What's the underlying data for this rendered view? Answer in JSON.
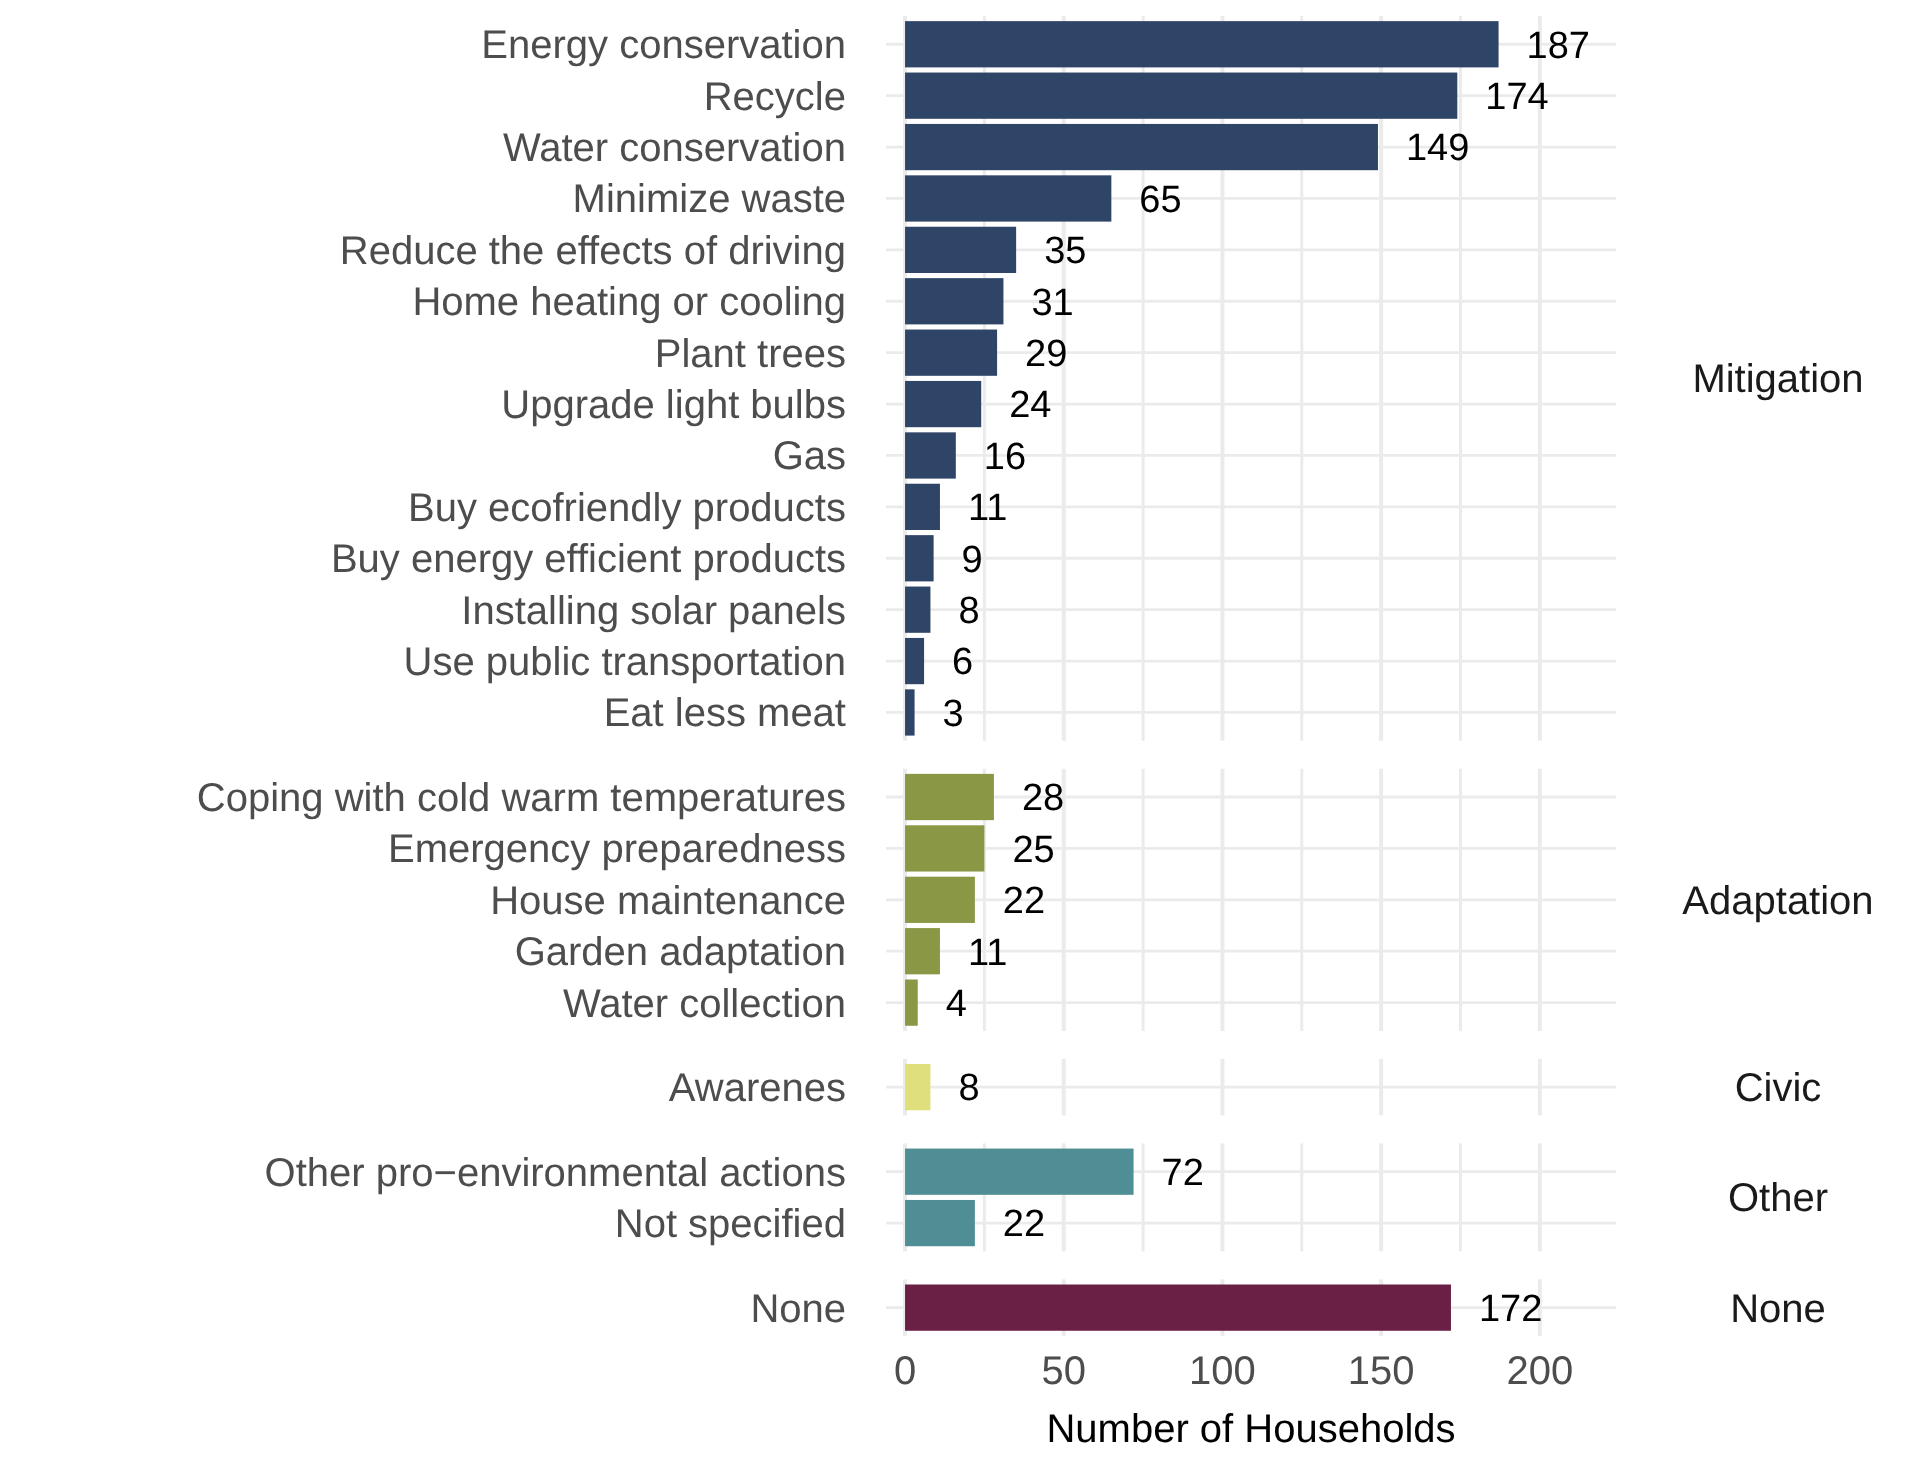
{
  "chart_data": [
    {
      "type": "bar",
      "orientation": "horizontal",
      "annotations": [
        "Mitigation"
      ],
      "categories": [
        "Energy conservation",
        "Recycle",
        "Water conservation",
        "Minimize waste",
        "Reduce the effects of driving",
        "Home heating or cooling",
        "Plant trees",
        "Upgrade light bulbs",
        "Gas",
        "Buy ecofriendly products",
        "Buy energy efficient products",
        "Installing solar panels",
        "Use public transportation",
        "Eat less meat"
      ],
      "values": [
        187,
        174,
        149,
        65,
        35,
        31,
        29,
        24,
        16,
        11,
        9,
        8,
        6,
        3
      ],
      "color": "#2f4567",
      "data_labels": true,
      "grid": true,
      "xlim": [
        -6,
        224
      ],
      "xticks": [
        0,
        {
          "value": 25,
          "label": null
        },
        50,
        {
          "value": 75,
          "label": null
        },
        100,
        {
          "value": 125,
          "label": null
        },
        150,
        {
          "value": 175,
          "label": null
        },
        200
      ],
      "tick_labels": "y"
    },
    {
      "type": "bar",
      "orientation": "horizontal",
      "annotations": [
        "Adaptation"
      ],
      "categories": [
        "Coping with cold warm temperatures",
        "Emergency preparedness",
        "House maintenance",
        "Garden adaptation",
        "Water collection"
      ],
      "values": [
        28,
        25,
        22,
        11,
        4
      ],
      "color": "#8a9846",
      "data_labels": true,
      "grid": true,
      "xlim": [
        -6,
        224
      ],
      "xticks": [
        0,
        {
          "value": 25,
          "label": null
        },
        50,
        {
          "value": 75,
          "label": null
        },
        100,
        {
          "value": 125,
          "label": null
        },
        150,
        {
          "value": 175,
          "label": null
        },
        200
      ],
      "tick_labels": "y"
    },
    {
      "type": "bar",
      "orientation": "horizontal",
      "annotations": [
        "Civic"
      ],
      "categories": [
        "Awarenes"
      ],
      "values": [
        8
      ],
      "color": "#dfe07c",
      "data_labels": true,
      "grid": true,
      "xlim": [
        -6,
        224
      ],
      "xticks": [
        0,
        50,
        100,
        150,
        200
      ],
      "tick_labels": "y"
    },
    {
      "type": "bar",
      "orientation": "horizontal",
      "annotations": [
        "Other"
      ],
      "categories": [
        "Other pro−environmental actions",
        "Not specified"
      ],
      "values": [
        72,
        22
      ],
      "color": "#4f8e95",
      "data_labels": true,
      "grid": true,
      "xlim": [
        -6,
        224
      ],
      "xticks": [
        0,
        {
          "value": 25,
          "label": null
        },
        50,
        {
          "value": 75,
          "label": null
        },
        100,
        {
          "value": 125,
          "label": null
        },
        150,
        {
          "value": 175,
          "label": null
        },
        200
      ],
      "tick_labels": "y"
    },
    {
      "type": "bar",
      "orientation": "horizontal",
      "annotations": [
        "None"
      ],
      "categories": [
        "None"
      ],
      "values": [
        172
      ],
      "color": "#6a1f45",
      "data_labels": true,
      "grid": true,
      "xlabel": "Number of Households",
      "xlim": [
        -6,
        224
      ],
      "xticks": [
        0,
        50,
        100,
        150,
        200
      ]
    }
  ]
}
